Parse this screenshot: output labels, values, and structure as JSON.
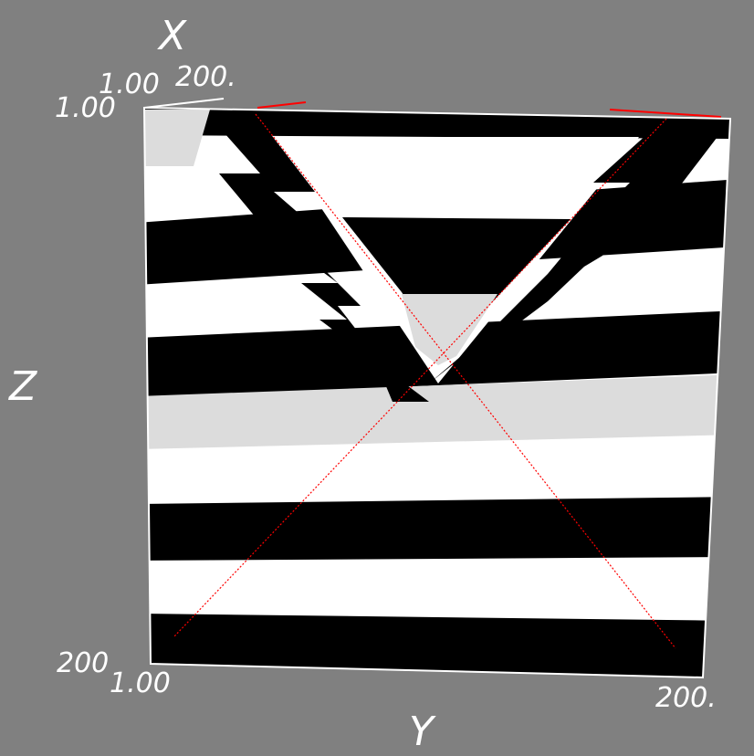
{
  "axes": {
    "x": {
      "title": "X",
      "tick_min": "1.00",
      "tick_max": "200."
    },
    "y": {
      "title": "Y",
      "tick_min": "1.00",
      "tick_max": "200."
    },
    "z": {
      "title": "Z",
      "tick_top": "1.00",
      "tick_bottom": "200"
    }
  },
  "colors": {
    "background": "#808080",
    "dark": "#000000",
    "light": "#ffffff",
    "mid": "#dcdcdc",
    "outline": "#ffffff",
    "cut_line": "#ff0000"
  }
}
